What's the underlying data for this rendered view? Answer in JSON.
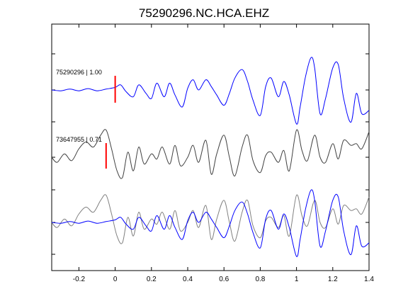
{
  "chart_data": {
    "type": "line",
    "title": "75290296.NC.HCA.EHZ",
    "xlabel": "",
    "ylabel": "",
    "xlim": [
      -0.35,
      1.4
    ],
    "xticks": [
      -0.2,
      0,
      0.2,
      0.4,
      0.6,
      0.8,
      1.0,
      1.2,
      1.4
    ],
    "xtick_labels": [
      "-0.2",
      "0",
      "0.2",
      "0.4",
      "0.6",
      "0.8",
      "1",
      "1.2",
      "1.4"
    ],
    "grid": false,
    "legend": "none",
    "traces": [
      {
        "label": "75290296 | 1.00",
        "color": "#0000ff",
        "pick_time": 0.0,
        "pick_color": "#ff0000",
        "x": [
          -0.35,
          -0.3,
          -0.25,
          -0.2,
          -0.15,
          -0.1,
          -0.05,
          0.0,
          0.03,
          0.06,
          0.1,
          0.13,
          0.17,
          0.2,
          0.23,
          0.27,
          0.3,
          0.33,
          0.37,
          0.4,
          0.43,
          0.46,
          0.5,
          0.53,
          0.56,
          0.6,
          0.63,
          0.66,
          0.7,
          0.73,
          0.76,
          0.8,
          0.83,
          0.86,
          0.9,
          0.93,
          0.96,
          1.0,
          1.02,
          1.05,
          1.08,
          1.1,
          1.13,
          1.16,
          1.2,
          1.23,
          1.26,
          1.3,
          1.33,
          1.36,
          1.4
        ],
        "y": [
          0.0,
          -0.05,
          0.05,
          -0.05,
          0.08,
          -0.05,
          0.05,
          0.15,
          0.3,
          -0.1,
          -0.4,
          0.3,
          -0.2,
          -0.5,
          0.4,
          -0.4,
          0.4,
          -0.3,
          -1.0,
          0.1,
          0.6,
          0.0,
          0.6,
          0.2,
          -0.3,
          -0.9,
          -0.2,
          0.7,
          1.2,
          0.5,
          -0.6,
          -1.5,
          0.2,
          0.7,
          -0.4,
          0.5,
          -0.3,
          -2.0,
          -1.0,
          0.8,
          1.9,
          1.3,
          -1.4,
          -0.5,
          1.3,
          1.5,
          -0.5,
          -1.9,
          -0.2,
          -1.4,
          -1.2
        ]
      },
      {
        "label": "73647955 | 0.71",
        "color": "#404040",
        "pick_time": -0.05,
        "pick_color": "#ff0000",
        "x": [
          -0.35,
          -0.32,
          -0.28,
          -0.24,
          -0.2,
          -0.16,
          -0.12,
          -0.08,
          -0.05,
          -0.02,
          0.01,
          0.04,
          0.07,
          0.1,
          0.13,
          0.16,
          0.2,
          0.23,
          0.26,
          0.3,
          0.33,
          0.36,
          0.4,
          0.43,
          0.46,
          0.5,
          0.53,
          0.56,
          0.6,
          0.63,
          0.66,
          0.7,
          0.73,
          0.76,
          0.8,
          0.83,
          0.86,
          0.9,
          0.93,
          0.96,
          1.0,
          1.03,
          1.06,
          1.1,
          1.13,
          1.16,
          1.2,
          1.23,
          1.26,
          1.3,
          1.33,
          1.36,
          1.4
        ],
        "y": [
          0.0,
          -0.3,
          0.2,
          -0.2,
          0.5,
          0.9,
          0.6,
          1.3,
          1.6,
          0.5,
          -0.8,
          -1.2,
          0.3,
          -0.8,
          0.6,
          -0.4,
          0.2,
          -0.1,
          0.6,
          -0.4,
          0.7,
          -0.5,
          0.0,
          0.7,
          -0.3,
          1.0,
          -1.0,
          0.2,
          1.3,
          0.0,
          -1.1,
          0.6,
          1.3,
          -0.2,
          -0.9,
          0.1,
          0.3,
          -0.3,
          0.4,
          -0.8,
          1.6,
          0.4,
          -0.2,
          1.3,
          0.0,
          -0.3,
          0.8,
          -0.1,
          1.0,
          0.7,
          0.8,
          0.5,
          1.5
        ]
      }
    ],
    "overlay": {
      "label": "",
      "series": [
        "75290296 | 1.00",
        "73647955 | 0.71"
      ],
      "colors": [
        "#0000ff",
        "#808080"
      ]
    }
  }
}
